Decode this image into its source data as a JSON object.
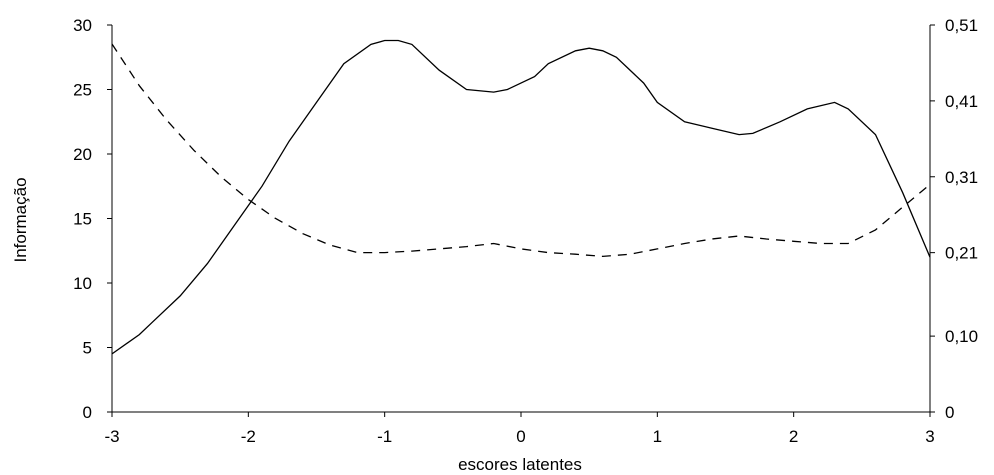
{
  "chart_data": {
    "type": "line",
    "title": "",
    "xlabel": "escores latentes",
    "ylabel": "Informação",
    "y2label": "",
    "xlim": [
      -3,
      3
    ],
    "ylim": [
      0,
      30
    ],
    "y2lim": [
      0,
      0.51
    ],
    "grid": false,
    "legend": "none",
    "x_ticks": [
      "-3",
      "-2",
      "-1",
      "0",
      "1",
      "2",
      "3"
    ],
    "y_ticks": [
      "0",
      "5",
      "10",
      "15",
      "20",
      "25",
      "30"
    ],
    "y2_ticks": [
      "0",
      "0,10",
      "0,21",
      "0,31",
      "0,41",
      "0,51"
    ],
    "series": [
      {
        "axis": "left",
        "style": "solid",
        "color": "#000000",
        "x": [
          -3.0,
          -2.8,
          -2.7,
          -2.5,
          -2.3,
          -2.1,
          -1.9,
          -1.7,
          -1.5,
          -1.3,
          -1.1,
          -1.0,
          -0.9,
          -0.8,
          -0.6,
          -0.4,
          -0.2,
          -0.1,
          0.1,
          0.2,
          0.4,
          0.5,
          0.6,
          0.7,
          0.9,
          1.0,
          1.2,
          1.4,
          1.6,
          1.7,
          1.9,
          2.1,
          2.3,
          2.4,
          2.6,
          2.8,
          3.0
        ],
        "y": [
          4.5,
          6.0,
          7.0,
          9.0,
          11.5,
          14.5,
          17.5,
          21.0,
          24.0,
          27.0,
          28.5,
          28.8,
          28.8,
          28.5,
          26.5,
          25.0,
          24.8,
          25.0,
          26.0,
          27.0,
          28.0,
          28.2,
          28.0,
          27.5,
          25.5,
          24.0,
          22.5,
          22.0,
          21.5,
          21.6,
          22.5,
          23.5,
          24.0,
          23.5,
          21.5,
          17.0,
          12.0
        ]
      },
      {
        "axis": "right",
        "style": "dashed",
        "color": "#000000",
        "x": [
          -3.0,
          -2.8,
          -2.6,
          -2.4,
          -2.2,
          -2.0,
          -1.8,
          -1.6,
          -1.4,
          -1.2,
          -1.0,
          -0.8,
          -0.6,
          -0.4,
          -0.2,
          0.0,
          0.2,
          0.4,
          0.6,
          0.8,
          1.0,
          1.2,
          1.4,
          1.6,
          1.8,
          2.0,
          2.2,
          2.4,
          2.6,
          2.8,
          3.0
        ],
        "y": [
          0.485,
          0.43,
          0.385,
          0.345,
          0.31,
          0.28,
          0.255,
          0.235,
          0.22,
          0.21,
          0.21,
          0.212,
          0.215,
          0.218,
          0.222,
          0.215,
          0.21,
          0.208,
          0.205,
          0.208,
          0.215,
          0.222,
          0.228,
          0.232,
          0.228,
          0.225,
          0.222,
          0.222,
          0.24,
          0.27,
          0.3
        ]
      }
    ]
  }
}
